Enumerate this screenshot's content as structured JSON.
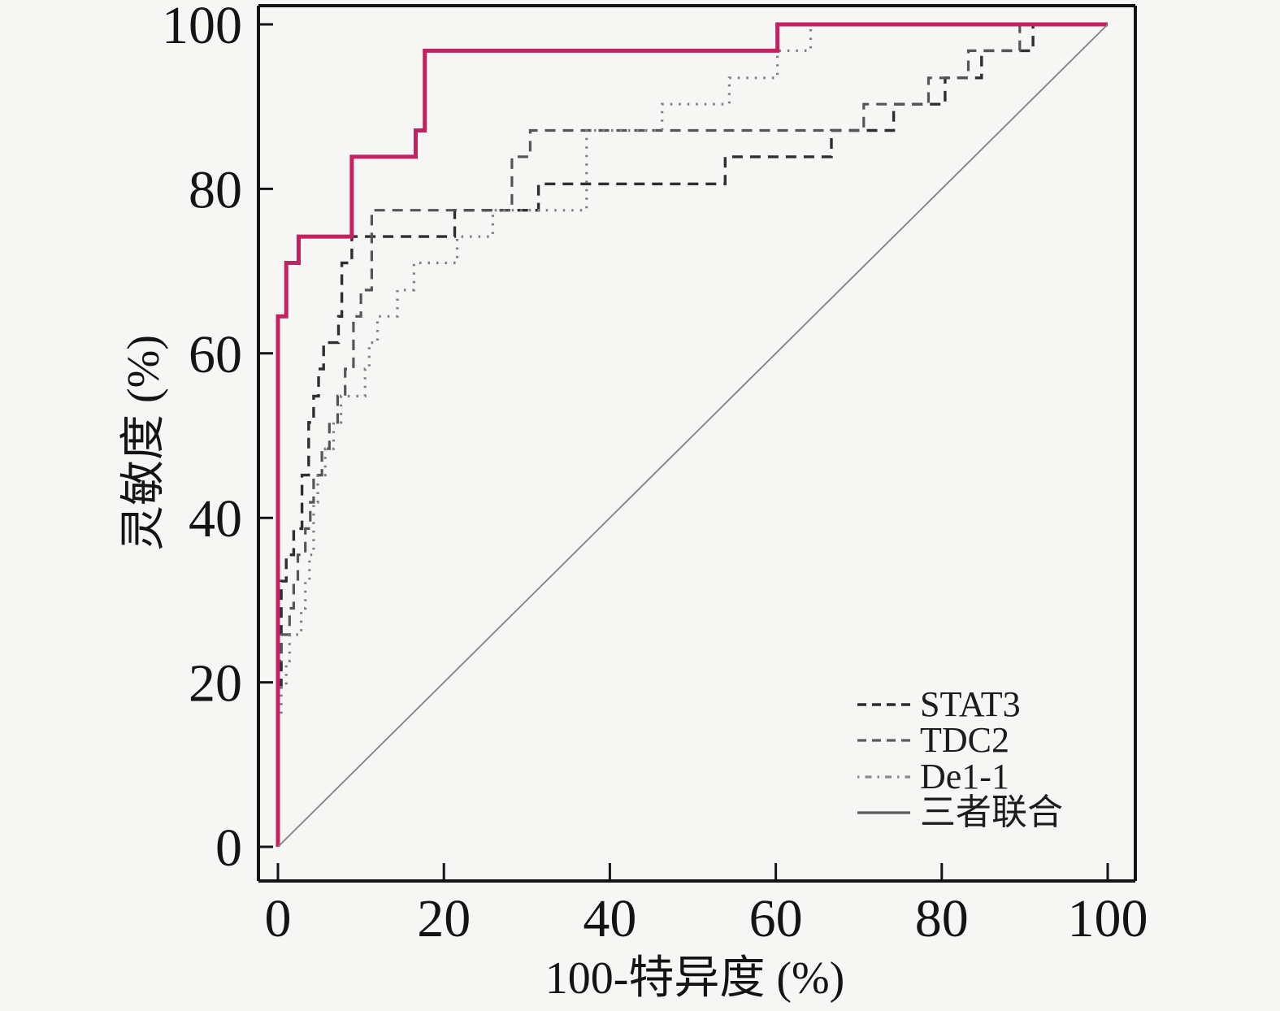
{
  "figure": {
    "background": "#f6f6f5",
    "axis_color": "#141414"
  },
  "chart_data": {
    "type": "line",
    "subtype": "roc-step-curves",
    "title": "",
    "xlabel": "100-特异度 (%)",
    "ylabel": "灵敏度 (%)",
    "xlim": [
      0,
      100
    ],
    "ylim": [
      0,
      100
    ],
    "x_ticks": [
      0,
      20,
      40,
      60,
      80,
      100
    ],
    "y_ticks": [
      0,
      20,
      40,
      60,
      80,
      100
    ],
    "grid": false,
    "legend_position": "lower-right",
    "series": [
      {
        "id": "stat3",
        "name": "STAT3",
        "style": "dashed",
        "color": "#2e2e2e",
        "width": 3.4,
        "dash": "13 9",
        "points": [
          [
            0,
            0
          ],
          [
            0,
            19.4
          ],
          [
            0.4,
            19.4
          ],
          [
            0.4,
            32.3
          ],
          [
            1,
            32.3
          ],
          [
            1,
            35.5
          ],
          [
            1.9,
            35.5
          ],
          [
            1.9,
            38.7
          ],
          [
            2.9,
            38.7
          ],
          [
            2.9,
            45.2
          ],
          [
            3.7,
            45.2
          ],
          [
            3.7,
            51.6
          ],
          [
            4.3,
            51.6
          ],
          [
            4.3,
            54.8
          ],
          [
            4.9,
            54.8
          ],
          [
            4.9,
            58.1
          ],
          [
            5.5,
            58.1
          ],
          [
            5.5,
            61.3
          ],
          [
            7.3,
            61.3
          ],
          [
            7.3,
            64.5
          ],
          [
            7.7,
            64.5
          ],
          [
            7.7,
            71
          ],
          [
            8.9,
            71
          ],
          [
            8.9,
            74.2
          ],
          [
            21.3,
            74.2
          ],
          [
            21.3,
            77.4
          ],
          [
            31.4,
            77.4
          ],
          [
            31.4,
            80.6
          ],
          [
            53.9,
            80.6
          ],
          [
            53.9,
            83.9
          ],
          [
            66.7,
            83.9
          ],
          [
            66.7,
            87.1
          ],
          [
            74.2,
            87.1
          ],
          [
            74.2,
            90.3
          ],
          [
            80.4,
            90.3
          ],
          [
            80.4,
            93.5
          ],
          [
            84.8,
            93.5
          ],
          [
            84.8,
            96.8
          ],
          [
            91,
            96.8
          ],
          [
            91,
            100
          ],
          [
            100,
            100
          ]
        ]
      },
      {
        "id": "tdc2",
        "name": "TDC2",
        "style": "dashed",
        "color": "#555555",
        "width": 3.2,
        "dash": "13 9",
        "points": [
          [
            0,
            0
          ],
          [
            0,
            22.6
          ],
          [
            0.4,
            22.6
          ],
          [
            0.4,
            25.8
          ],
          [
            1.4,
            25.8
          ],
          [
            1.4,
            29
          ],
          [
            1.9,
            29
          ],
          [
            1.9,
            32.3
          ],
          [
            2.4,
            32.3
          ],
          [
            2.4,
            35.5
          ],
          [
            3.3,
            35.5
          ],
          [
            3.3,
            38.7
          ],
          [
            3.9,
            38.7
          ],
          [
            3.9,
            41.9
          ],
          [
            4.3,
            41.9
          ],
          [
            4.3,
            45.2
          ],
          [
            5.3,
            45.2
          ],
          [
            5.3,
            48.4
          ],
          [
            6.2,
            48.4
          ],
          [
            6.2,
            51.6
          ],
          [
            7.2,
            51.6
          ],
          [
            7.2,
            54.8
          ],
          [
            8.1,
            54.8
          ],
          [
            8.1,
            58.1
          ],
          [
            9.1,
            58.1
          ],
          [
            9.1,
            64.5
          ],
          [
            10,
            64.5
          ],
          [
            10,
            67.7
          ],
          [
            11.3,
            67.7
          ],
          [
            11.3,
            77.4
          ],
          [
            28.2,
            77.4
          ],
          [
            28.2,
            83.9
          ],
          [
            30.4,
            83.9
          ],
          [
            30.4,
            87.1
          ],
          [
            70.6,
            87.1
          ],
          [
            70.6,
            90.3
          ],
          [
            78.4,
            90.3
          ],
          [
            78.4,
            93.5
          ],
          [
            83.2,
            93.5
          ],
          [
            83.2,
            96.8
          ],
          [
            89.4,
            96.8
          ],
          [
            89.4,
            100
          ],
          [
            100,
            100
          ]
        ]
      },
      {
        "id": "de1-1",
        "name": "De1-1",
        "style": "dotted",
        "color": "#7f7f7f",
        "width": 3.2,
        "dash": "2.5 8",
        "points": [
          [
            0,
            0
          ],
          [
            0,
            16.1
          ],
          [
            0.4,
            16.1
          ],
          [
            0.4,
            19.4
          ],
          [
            1,
            19.4
          ],
          [
            1,
            22.6
          ],
          [
            1.4,
            22.6
          ],
          [
            1.4,
            25.8
          ],
          [
            2.8,
            25.8
          ],
          [
            2.8,
            29
          ],
          [
            3.3,
            29
          ],
          [
            3.3,
            32.3
          ],
          [
            3.8,
            32.3
          ],
          [
            3.8,
            35.5
          ],
          [
            4.3,
            35.5
          ],
          [
            4.3,
            41.9
          ],
          [
            4.8,
            41.9
          ],
          [
            4.8,
            45.2
          ],
          [
            5.7,
            45.2
          ],
          [
            5.7,
            48.4
          ],
          [
            6.7,
            48.4
          ],
          [
            6.7,
            51.6
          ],
          [
            7.6,
            51.6
          ],
          [
            7.6,
            54.8
          ],
          [
            10.5,
            54.8
          ],
          [
            10.5,
            58.1
          ],
          [
            11,
            58.1
          ],
          [
            11,
            61.3
          ],
          [
            12,
            61.3
          ],
          [
            12,
            64.5
          ],
          [
            14.4,
            64.5
          ],
          [
            14.4,
            67.7
          ],
          [
            16.4,
            67.7
          ],
          [
            16.4,
            71
          ],
          [
            21.6,
            71
          ],
          [
            21.6,
            74.2
          ],
          [
            25.9,
            74.2
          ],
          [
            25.9,
            77.4
          ],
          [
            37.2,
            77.4
          ],
          [
            37.2,
            87.1
          ],
          [
            46.3,
            87.1
          ],
          [
            46.3,
            90.3
          ],
          [
            54.4,
            90.3
          ],
          [
            54.4,
            93.5
          ],
          [
            60.2,
            93.5
          ],
          [
            60.2,
            96.8
          ],
          [
            64.2,
            96.8
          ],
          [
            64.2,
            100
          ],
          [
            100,
            100
          ]
        ]
      },
      {
        "id": "combined",
        "name": "三者联合",
        "style": "solid",
        "color": "#c52162",
        "width": 5,
        "dash": "",
        "points": [
          [
            0,
            0
          ],
          [
            0,
            64.5
          ],
          [
            1,
            64.5
          ],
          [
            1,
            71
          ],
          [
            2.5,
            71
          ],
          [
            2.5,
            74.2
          ],
          [
            8.9,
            74.2
          ],
          [
            8.9,
            83.9
          ],
          [
            16.6,
            83.9
          ],
          [
            16.6,
            87.1
          ],
          [
            17.7,
            87.1
          ],
          [
            17.7,
            96.8
          ],
          [
            60.2,
            96.8
          ],
          [
            60.2,
            100
          ],
          [
            100,
            100
          ]
        ]
      },
      {
        "id": "reference",
        "name": "reference-diagonal",
        "style": "solid",
        "color": "#828282",
        "width": 1.8,
        "dash": "",
        "points": [
          [
            0,
            0
          ],
          [
            100,
            100
          ]
        ]
      }
    ]
  },
  "legend": {
    "entries": [
      {
        "label": "STAT3",
        "color": "#2b2b2b",
        "width": 3.4,
        "dash": "11 7"
      },
      {
        "label": "TDC2",
        "color": "#5a5a5a",
        "width": 3.2,
        "dash": "11 7"
      },
      {
        "label": "De1-1",
        "color": "#8a8a8a",
        "width": 3.2,
        "dash": "2.5 7 8 7"
      },
      {
        "label": "三者联合",
        "color": "#5a5a5a",
        "width": 3.2,
        "dash": ""
      }
    ]
  }
}
